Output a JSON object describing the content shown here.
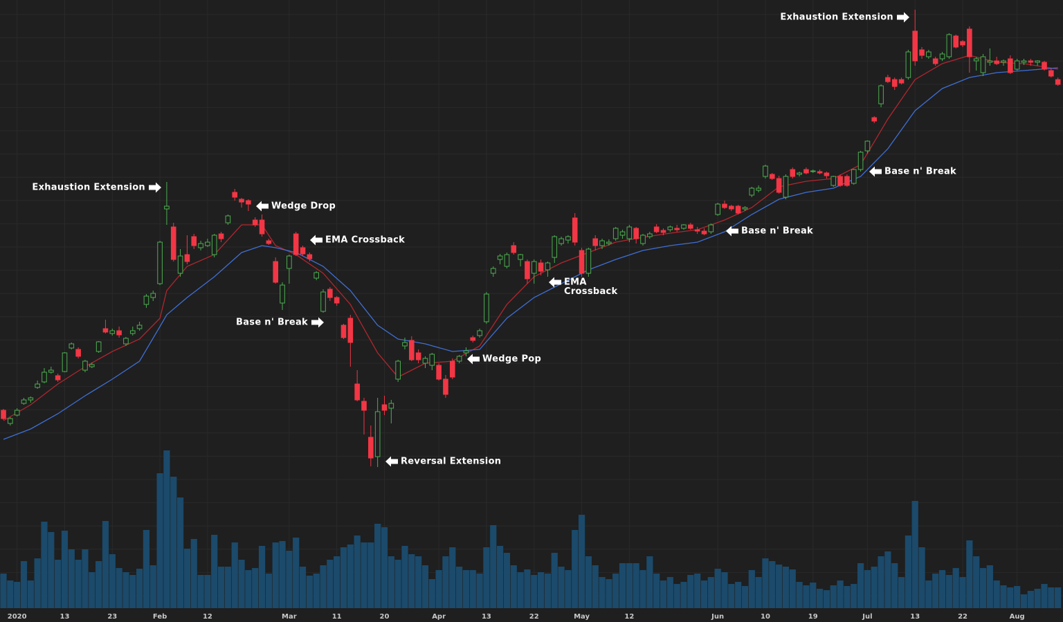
{
  "chart_data": {
    "type": "candlestick",
    "grid": true,
    "up_color": "#4caf50",
    "down_color": "#f23645",
    "ylim": [
      0,
      700
    ],
    "y2lim": [
      0,
      280
    ],
    "categories": [
      null,
      null,
      "2020",
      null,
      null,
      null,
      null,
      null,
      null,
      "13",
      null,
      null,
      null,
      null,
      null,
      null,
      "23",
      null,
      null,
      null,
      null,
      null,
      null,
      "Feb",
      null,
      null,
      null,
      null,
      null,
      null,
      "12",
      null,
      null,
      null,
      null,
      null,
      null,
      null,
      null,
      null,
      null,
      null,
      "Mar",
      null,
      null,
      null,
      null,
      null,
      null,
      "11",
      null,
      null,
      null,
      null,
      null,
      null,
      "20",
      null,
      null,
      null,
      null,
      null,
      null,
      null,
      "Apr",
      null,
      null,
      null,
      null,
      null,
      null,
      "13",
      null,
      null,
      null,
      null,
      null,
      null,
      "22",
      null,
      null,
      null,
      null,
      null,
      null,
      "May",
      null,
      null,
      null,
      null,
      null,
      null,
      "12",
      null,
      null,
      null,
      null,
      null,
      null,
      null,
      null,
      null,
      null,
      null,
      null,
      "Jun",
      null,
      null,
      null,
      null,
      null,
      null,
      "10",
      null,
      null,
      null,
      null,
      null,
      null,
      "19",
      null,
      null,
      null,
      null,
      null,
      null,
      null,
      "Jul",
      null,
      null,
      null,
      null,
      null,
      null,
      "13",
      null,
      null,
      null,
      null,
      null,
      null,
      "22",
      null,
      null,
      null,
      null,
      null,
      null,
      null,
      "Aug",
      null,
      null,
      null,
      null,
      null,
      null
    ],
    "ohlc": [
      [
        107,
        109,
        93,
        95
      ],
      [
        88,
        97,
        85,
        95
      ],
      [
        100,
        110,
        98,
        107
      ],
      [
        117,
        125,
        115,
        122
      ],
      [
        122,
        127,
        118,
        125
      ],
      [
        140,
        150,
        138,
        145
      ],
      [
        148,
        168,
        146,
        162
      ],
      [
        162,
        170,
        160,
        165
      ],
      [
        157,
        160,
        148,
        151
      ],
      [
        163,
        191,
        162,
        190
      ],
      [
        197,
        205,
        195,
        203
      ],
      [
        195,
        198,
        182,
        185
      ],
      [
        165,
        180,
        162,
        178
      ],
      [
        170,
        176,
        168,
        173
      ],
      [
        192,
        207,
        190,
        206
      ],
      [
        225,
        238,
        218,
        220
      ],
      [
        218,
        225,
        215,
        222
      ],
      [
        222,
        228,
        212,
        216
      ],
      [
        203,
        213,
        200,
        211
      ],
      [
        218,
        228,
        215,
        222
      ],
      [
        225,
        235,
        222,
        230
      ],
      [
        260,
        275,
        255,
        272
      ],
      [
        270,
        280,
        265,
        276
      ],
      [
        290,
        352,
        288,
        350
      ],
      [
        398,
        437,
        375,
        402
      ],
      [
        372,
        378,
        322,
        325
      ],
      [
        305,
        340,
        300,
        330
      ],
      [
        332,
        360,
        318,
        322
      ],
      [
        358,
        362,
        340,
        345
      ],
      [
        342,
        352,
        338,
        348
      ],
      [
        345,
        355,
        343,
        350
      ],
      [
        332,
        362,
        328,
        360
      ],
      [
        362,
        365,
        350,
        355
      ],
      [
        378,
        390,
        375,
        388
      ],
      [
        422,
        427,
        410,
        415
      ],
      [
        412,
        414,
        400,
        408
      ],
      [
        410,
        412,
        395,
        405
      ],
      [
        382,
        386,
        372,
        375
      ],
      [
        382,
        390,
        358,
        362
      ],
      [
        352,
        355,
        346,
        348
      ],
      [
        322,
        328,
        290,
        292
      ],
      [
        262,
        292,
        252,
        288
      ],
      [
        312,
        332,
        290,
        330
      ],
      [
        362,
        365,
        330,
        332
      ],
      [
        342,
        345,
        330,
        333
      ],
      [
        332,
        335,
        322,
        326
      ],
      [
        298,
        308,
        295,
        306
      ],
      [
        250,
        282,
        248,
        278
      ],
      [
        282,
        285,
        265,
        270
      ],
      [
        270,
        272,
        258,
        262
      ],
      [
        230,
        232,
        210,
        212
      ],
      [
        240,
        245,
        170,
        205
      ],
      [
        145,
        165,
        120,
        122
      ],
      [
        120,
        125,
        72,
        107
      ],
      [
        68,
        85,
        26,
        38
      ],
      [
        40,
        125,
        25,
        105
      ],
      [
        115,
        128,
        100,
        107
      ],
      [
        110,
        122,
        88,
        117
      ],
      [
        152,
        180,
        148,
        178
      ],
      [
        200,
        212,
        195,
        205
      ],
      [
        208,
        214,
        178,
        180
      ],
      [
        190,
        195,
        175,
        180
      ],
      [
        175,
        185,
        168,
        182
      ],
      [
        172,
        190,
        165,
        188
      ],
      [
        172,
        175,
        150,
        152
      ],
      [
        152,
        158,
        125,
        130
      ],
      [
        178,
        182,
        152,
        155
      ],
      [
        178,
        187,
        175,
        185
      ],
      [
        190,
        198,
        185,
        193
      ],
      [
        212,
        215,
        205,
        208
      ],
      [
        215,
        225,
        212,
        222
      ],
      [
        235,
        278,
        232,
        275
      ],
      [
        305,
        315,
        300,
        312
      ],
      [
        325,
        333,
        318,
        330
      ],
      [
        315,
        335,
        312,
        332
      ],
      [
        345,
        350,
        332,
        335
      ],
      [
        325,
        333,
        315,
        332
      ],
      [
        322,
        325,
        290,
        297
      ],
      [
        305,
        325,
        290,
        322
      ],
      [
        320,
        325,
        302,
        308
      ],
      [
        310,
        322,
        300,
        320
      ],
      [
        328,
        360,
        320,
        358
      ],
      [
        348,
        358,
        345,
        355
      ],
      [
        353,
        360,
        348,
        358
      ],
      [
        385,
        392,
        345,
        350
      ],
      [
        338,
        342,
        300,
        305
      ],
      [
        305,
        342,
        300,
        340
      ],
      [
        355,
        360,
        338,
        345
      ],
      [
        345,
        355,
        340,
        352
      ],
      [
        348,
        354,
        345,
        350
      ],
      [
        355,
        372,
        352,
        370
      ],
      [
        360,
        368,
        355,
        365
      ],
      [
        355,
        375,
        350,
        372
      ],
      [
        370,
        372,
        348,
        355
      ],
      [
        348,
        362,
        345,
        360
      ],
      [
        358,
        365,
        355,
        362
      ],
      [
        372,
        376,
        363,
        365
      ],
      [
        367,
        370,
        360,
        364
      ],
      [
        368,
        374,
        365,
        372
      ],
      [
        370,
        375,
        365,
        368
      ],
      [
        370,
        376,
        368,
        375
      ],
      [
        375,
        378,
        368,
        370
      ],
      [
        368,
        372,
        362,
        366
      ],
      [
        366,
        370,
        360,
        362
      ],
      [
        365,
        377,
        362,
        375
      ],
      [
        390,
        407,
        388,
        405
      ],
      [
        405,
        410,
        398,
        400
      ],
      [
        402,
        404,
        395,
        398
      ],
      [
        402,
        404,
        390,
        392
      ],
      [
        398,
        402,
        395,
        400
      ],
      [
        418,
        430,
        415,
        428
      ],
      [
        425,
        432,
        422,
        428
      ],
      [
        445,
        462,
        442,
        460
      ],
      [
        448,
        450,
        440,
        442
      ],
      [
        442,
        446,
        420,
        422
      ],
      [
        415,
        448,
        412,
        445
      ],
      [
        455,
        458,
        442,
        445
      ],
      [
        448,
        452,
        445,
        450
      ],
      [
        455,
        458,
        448,
        450
      ],
      [
        452,
        455,
        450,
        453
      ],
      [
        452,
        455,
        448,
        450
      ],
      [
        450,
        452,
        442,
        446
      ],
      [
        432,
        446,
        430,
        445
      ],
      [
        445,
        448,
        430,
        432
      ],
      [
        445,
        448,
        430,
        432
      ],
      [
        435,
        456,
        433,
        455
      ],
      [
        455,
        482,
        452,
        480
      ],
      [
        482,
        497,
        478,
        496
      ],
      [
        530,
        532,
        522,
        525
      ],
      [
        550,
        578,
        545,
        576
      ],
      [
        588,
        592,
        580,
        582
      ],
      [
        585,
        588,
        570,
        575
      ],
      [
        585,
        588,
        578,
        580
      ],
      [
        588,
        628,
        585,
        625
      ],
      [
        655,
        686,
        605,
        612
      ],
      [
        628,
        632,
        615,
        620
      ],
      [
        618,
        628,
        615,
        625
      ],
      [
        615,
        618,
        605,
        608
      ],
      [
        615,
        625,
        612,
        622
      ],
      [
        618,
        652,
        615,
        650
      ],
      [
        648,
        650,
        630,
        632
      ],
      [
        640,
        642,
        632,
        635
      ],
      [
        658,
        662,
        595,
        618
      ],
      [
        612,
        618,
        598,
        615
      ],
      [
        595,
        622,
        590,
        618
      ],
      [
        610,
        630,
        605,
        612
      ],
      [
        612,
        618,
        606,
        608
      ],
      [
        610,
        614,
        605,
        612
      ],
      [
        615,
        620,
        593,
        595
      ],
      [
        600,
        615,
        598,
        612
      ],
      [
        610,
        615,
        606,
        612
      ],
      [
        612,
        615,
        605,
        610
      ],
      [
        610,
        613,
        605,
        612
      ],
      [
        610,
        612,
        598,
        600
      ],
      [
        598,
        602,
        588,
        590
      ],
      [
        585,
        588,
        576,
        578
      ]
    ],
    "volume": {
      "color": "#1b4a6b",
      "values": [
        50,
        40,
        38,
        68,
        40,
        72,
        125,
        110,
        70,
        112,
        85,
        70,
        85,
        52,
        68,
        126,
        78,
        58,
        52,
        48,
        57,
        113,
        62,
        195,
        228,
        190,
        160,
        86,
        100,
        48,
        48,
        106,
        60,
        60,
        95,
        70,
        55,
        58,
        90,
        50,
        95,
        97,
        83,
        102,
        60,
        47,
        50,
        62,
        70,
        75,
        88,
        92,
        105,
        95,
        95,
        122,
        117,
        75,
        70,
        90,
        78,
        75,
        62,
        42,
        55,
        75,
        88,
        60,
        55,
        55,
        50,
        88,
        120,
        90,
        80,
        62,
        52,
        56,
        48,
        52,
        50,
        80,
        60,
        55,
        113,
        135,
        75,
        62,
        45,
        42,
        50,
        65,
        65,
        65,
        55,
        75,
        50,
        40,
        45,
        35,
        38,
        48,
        50,
        40,
        45,
        57,
        52,
        35,
        38,
        32,
        55,
        45,
        72,
        68,
        63,
        60,
        56,
        38,
        33,
        37,
        28,
        26,
        33,
        40,
        32,
        35,
        65,
        55,
        60,
        75,
        82,
        65,
        45,
        105,
        155,
        88,
        40,
        50,
        55,
        48,
        58,
        45,
        98,
        75,
        58,
        62,
        40,
        33,
        30,
        32,
        20,
        25,
        28,
        35,
        30,
        30
      ]
    },
    "series": [
      {
        "color": "#b3262f",
        "x": [
          0,
          4,
          8,
          12,
          16,
          20,
          23,
          24,
          27,
          31,
          35,
          38,
          40,
          43,
          47,
          51,
          55,
          58,
          62,
          66,
          70,
          74,
          78,
          82,
          86,
          90,
          94,
          98,
          102,
          106,
          110,
          114,
          118,
          122,
          126,
          130,
          134,
          138,
          142,
          146,
          150,
          155
        ],
        "values": [
          92,
          115,
          145,
          170,
          192,
          210,
          240,
          280,
          315,
          332,
          375,
          375,
          345,
          332,
          305,
          260,
          190,
          155,
          175,
          178,
          200,
          260,
          300,
          320,
          335,
          350,
          357,
          363,
          368,
          382,
          400,
          430,
          438,
          442,
          462,
          528,
          585,
          608,
          620,
          610,
          608,
          600
        ]
      },
      {
        "color": "#3f6fd6",
        "x": [
          0,
          4,
          8,
          12,
          16,
          20,
          23,
          24,
          27,
          31,
          35,
          38,
          40,
          43,
          47,
          51,
          55,
          58,
          62,
          66,
          70,
          74,
          78,
          82,
          86,
          90,
          94,
          98,
          102,
          106,
          110,
          114,
          118,
          122,
          126,
          130,
          134,
          138,
          142,
          146,
          150,
          155
        ],
        "values": [
          65,
          80,
          102,
          128,
          152,
          178,
          228,
          245,
          270,
          300,
          335,
          345,
          342,
          335,
          315,
          280,
          230,
          210,
          203,
          192,
          195,
          240,
          270,
          290,
          310,
          325,
          338,
          345,
          350,
          365,
          390,
          412,
          422,
          428,
          445,
          485,
          540,
          572,
          588,
          595,
          598,
          602
        ]
      }
    ],
    "annotations": [
      [
        "Exhaustion Extension"
      ],
      [
        "Wedge Drop"
      ],
      [
        "EMA Crossback"
      ],
      [
        "Base n' Break"
      ],
      [
        "Reversal Extension"
      ],
      [
        "Wedge Pop"
      ],
      [
        "EMA",
        "Crossback"
      ],
      [
        "Base n' Break"
      ],
      [
        "Base n' Break"
      ],
      [
        "Exhaustion Extension"
      ]
    ]
  }
}
